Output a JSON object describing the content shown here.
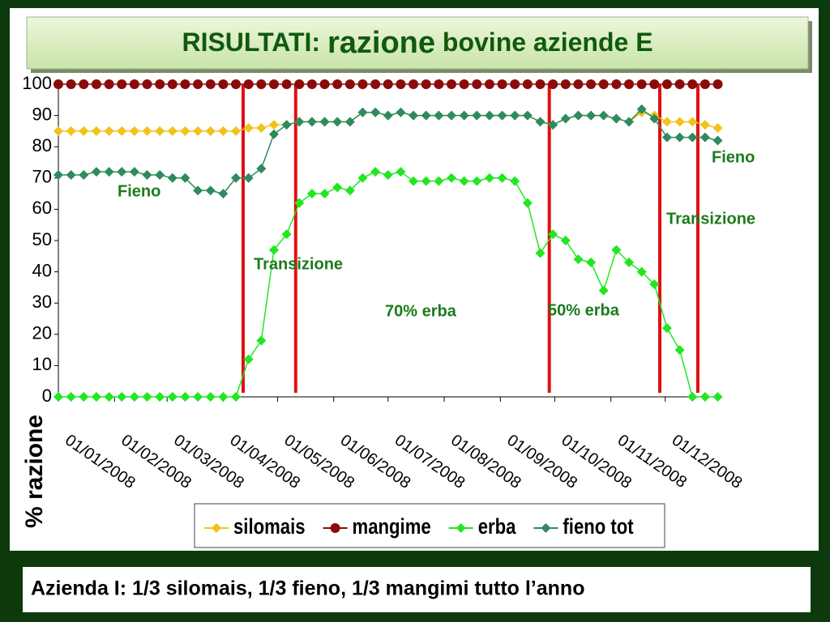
{
  "slide": {
    "title_start": "RISULTATI:",
    "title_emphasis": "razione",
    "title_end": "bovine aziende E",
    "caption": "Azienda I: 1/3 silomais, 1/3 fieno, 1/3 mangimi tutto l’anno"
  },
  "chart_data": {
    "type": "line",
    "y_label": "% razione",
    "x": [
      "01/01/2008",
      "08/01/2008",
      "15/01/2008",
      "22/01/2008",
      "29/01/2008",
      "05/02/2008",
      "12/02/2008",
      "19/02/2008",
      "26/02/2008",
      "04/03/2008",
      "11/03/2008",
      "18/03/2008",
      "25/03/2008",
      "01/04/2008",
      "08/04/2008",
      "15/04/2008",
      "22/04/2008",
      "29/04/2008",
      "06/05/2008",
      "13/05/2008",
      "20/05/2008",
      "27/05/2008",
      "03/06/2008",
      "10/06/2008",
      "17/06/2008",
      "24/06/2008",
      "01/07/2008",
      "08/07/2008",
      "15/07/2008",
      "22/07/2008",
      "29/07/2008",
      "05/08/2008",
      "12/08/2008",
      "19/08/2008",
      "26/08/2008",
      "02/09/2008",
      "09/09/2008",
      "16/09/2008",
      "23/09/2008",
      "30/09/2008",
      "07/10/2008",
      "14/10/2008",
      "21/10/2008",
      "28/10/2008",
      "04/11/2008",
      "11/11/2008",
      "18/11/2008",
      "25/11/2008",
      "02/12/2008",
      "09/12/2008",
      "16/12/2008",
      "23/12/2008",
      "30/12/2008"
    ],
    "series": [
      {
        "name": "silomais",
        "color": "#f2c21b",
        "marker": "diamond",
        "values": [
          85,
          85,
          85,
          85,
          85,
          85,
          85,
          85,
          85,
          85,
          85,
          85,
          85,
          85,
          85,
          86,
          86,
          87,
          87,
          88,
          88,
          88,
          88,
          88,
          91,
          91,
          90,
          91,
          90,
          90,
          90,
          90,
          90,
          90,
          90,
          90,
          90,
          90,
          88,
          87,
          89,
          90,
          90,
          90,
          89,
          88,
          91,
          90,
          88,
          88,
          88,
          87,
          86
        ]
      },
      {
        "name": "mangime",
        "color": "#8b0a0a",
        "marker": "circle",
        "values": [
          100,
          100,
          100,
          100,
          100,
          100,
          100,
          100,
          100,
          100,
          100,
          100,
          100,
          100,
          100,
          100,
          100,
          100,
          100,
          100,
          100,
          100,
          100,
          100,
          100,
          100,
          100,
          100,
          100,
          100,
          100,
          100,
          100,
          100,
          100,
          100,
          100,
          100,
          100,
          100,
          100,
          100,
          100,
          100,
          100,
          100,
          100,
          100,
          100,
          100,
          100,
          100,
          100
        ]
      },
      {
        "name": "erba",
        "color": "#22e622",
        "marker": "diamond",
        "values": [
          0,
          0,
          0,
          0,
          0,
          0,
          0,
          0,
          0,
          0,
          0,
          0,
          0,
          0,
          0,
          12,
          18,
          47,
          52,
          62,
          65,
          65,
          67,
          66,
          70,
          72,
          71,
          72,
          69,
          69,
          69,
          70,
          69,
          69,
          70,
          70,
          69,
          62,
          46,
          52,
          50,
          44,
          43,
          34,
          47,
          43,
          40,
          36,
          22,
          15,
          0,
          0,
          0
        ]
      },
      {
        "name": "fieno tot",
        "color": "#2e8b5f",
        "marker": "diamond",
        "values": [
          71,
          71,
          71,
          72,
          72,
          72,
          72,
          71,
          71,
          70,
          70,
          66,
          66,
          65,
          70,
          70,
          73,
          84,
          87,
          88,
          88,
          88,
          88,
          88,
          91,
          91,
          90,
          91,
          90,
          90,
          90,
          90,
          90,
          90,
          90,
          90,
          90,
          90,
          88,
          87,
          89,
          90,
          90,
          90,
          89,
          88,
          92,
          89,
          83,
          83,
          83,
          83,
          82
        ]
      }
    ],
    "xlim": [
      "01/01/2008",
      "31/12/2008"
    ],
    "xticks": [
      "01/01/2008",
      "01/02/2008",
      "01/03/2008",
      "01/04/2008",
      "01/05/2008",
      "01/06/2008",
      "01/07/2008",
      "01/08/2008",
      "01/09/2008",
      "01/10/2008",
      "01/11/2008",
      "01/12/2008"
    ],
    "ylim": [
      0,
      100
    ],
    "yticks": [
      0,
      10,
      20,
      30,
      40,
      50,
      60,
      70,
      80,
      90,
      100
    ],
    "vlines": [
      "12/04/2008",
      "11/05/2008",
      "28/09/2008",
      "28/11/2008",
      "19/12/2008"
    ],
    "vline_color": "#e01010",
    "annotations": [
      "Fieno",
      "Fieno",
      "Transizione",
      "Transizione",
      "70% erba",
      "50% erba"
    ],
    "annotation_color": "#1c7a1c",
    "legend": "bottom"
  }
}
